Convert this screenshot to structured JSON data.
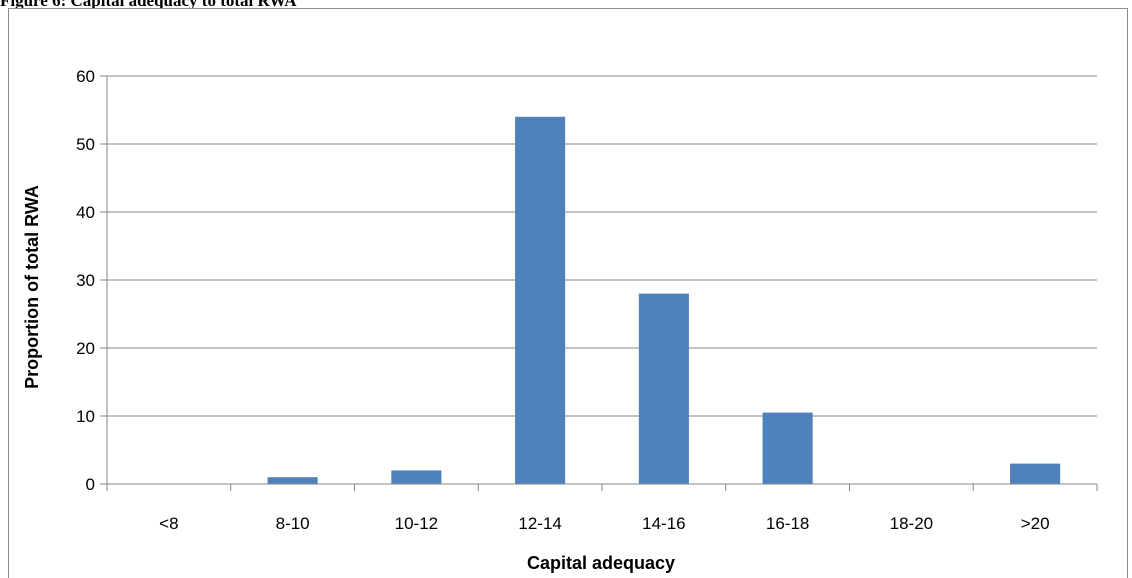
{
  "figure": {
    "title": "Figure 6: Capital adequacy to total RWA"
  },
  "colors": {
    "bar": "#4f81bd",
    "grid": "#868686",
    "axis": "#868686"
  },
  "chart_data": {
    "type": "bar",
    "title": "",
    "xlabel": "Capital adequacy",
    "ylabel": "Proportion of total RWA",
    "categories": [
      "<8",
      "8-10",
      "10-12",
      "12-14",
      "14-16",
      "16-18",
      "18-20",
      ">20"
    ],
    "values": [
      0,
      1,
      2,
      54,
      28,
      10.5,
      0,
      3
    ],
    "ylim": [
      0,
      60
    ],
    "yticks": [
      0,
      10,
      20,
      30,
      40,
      50,
      60
    ],
    "grid": true,
    "legend": "none"
  }
}
